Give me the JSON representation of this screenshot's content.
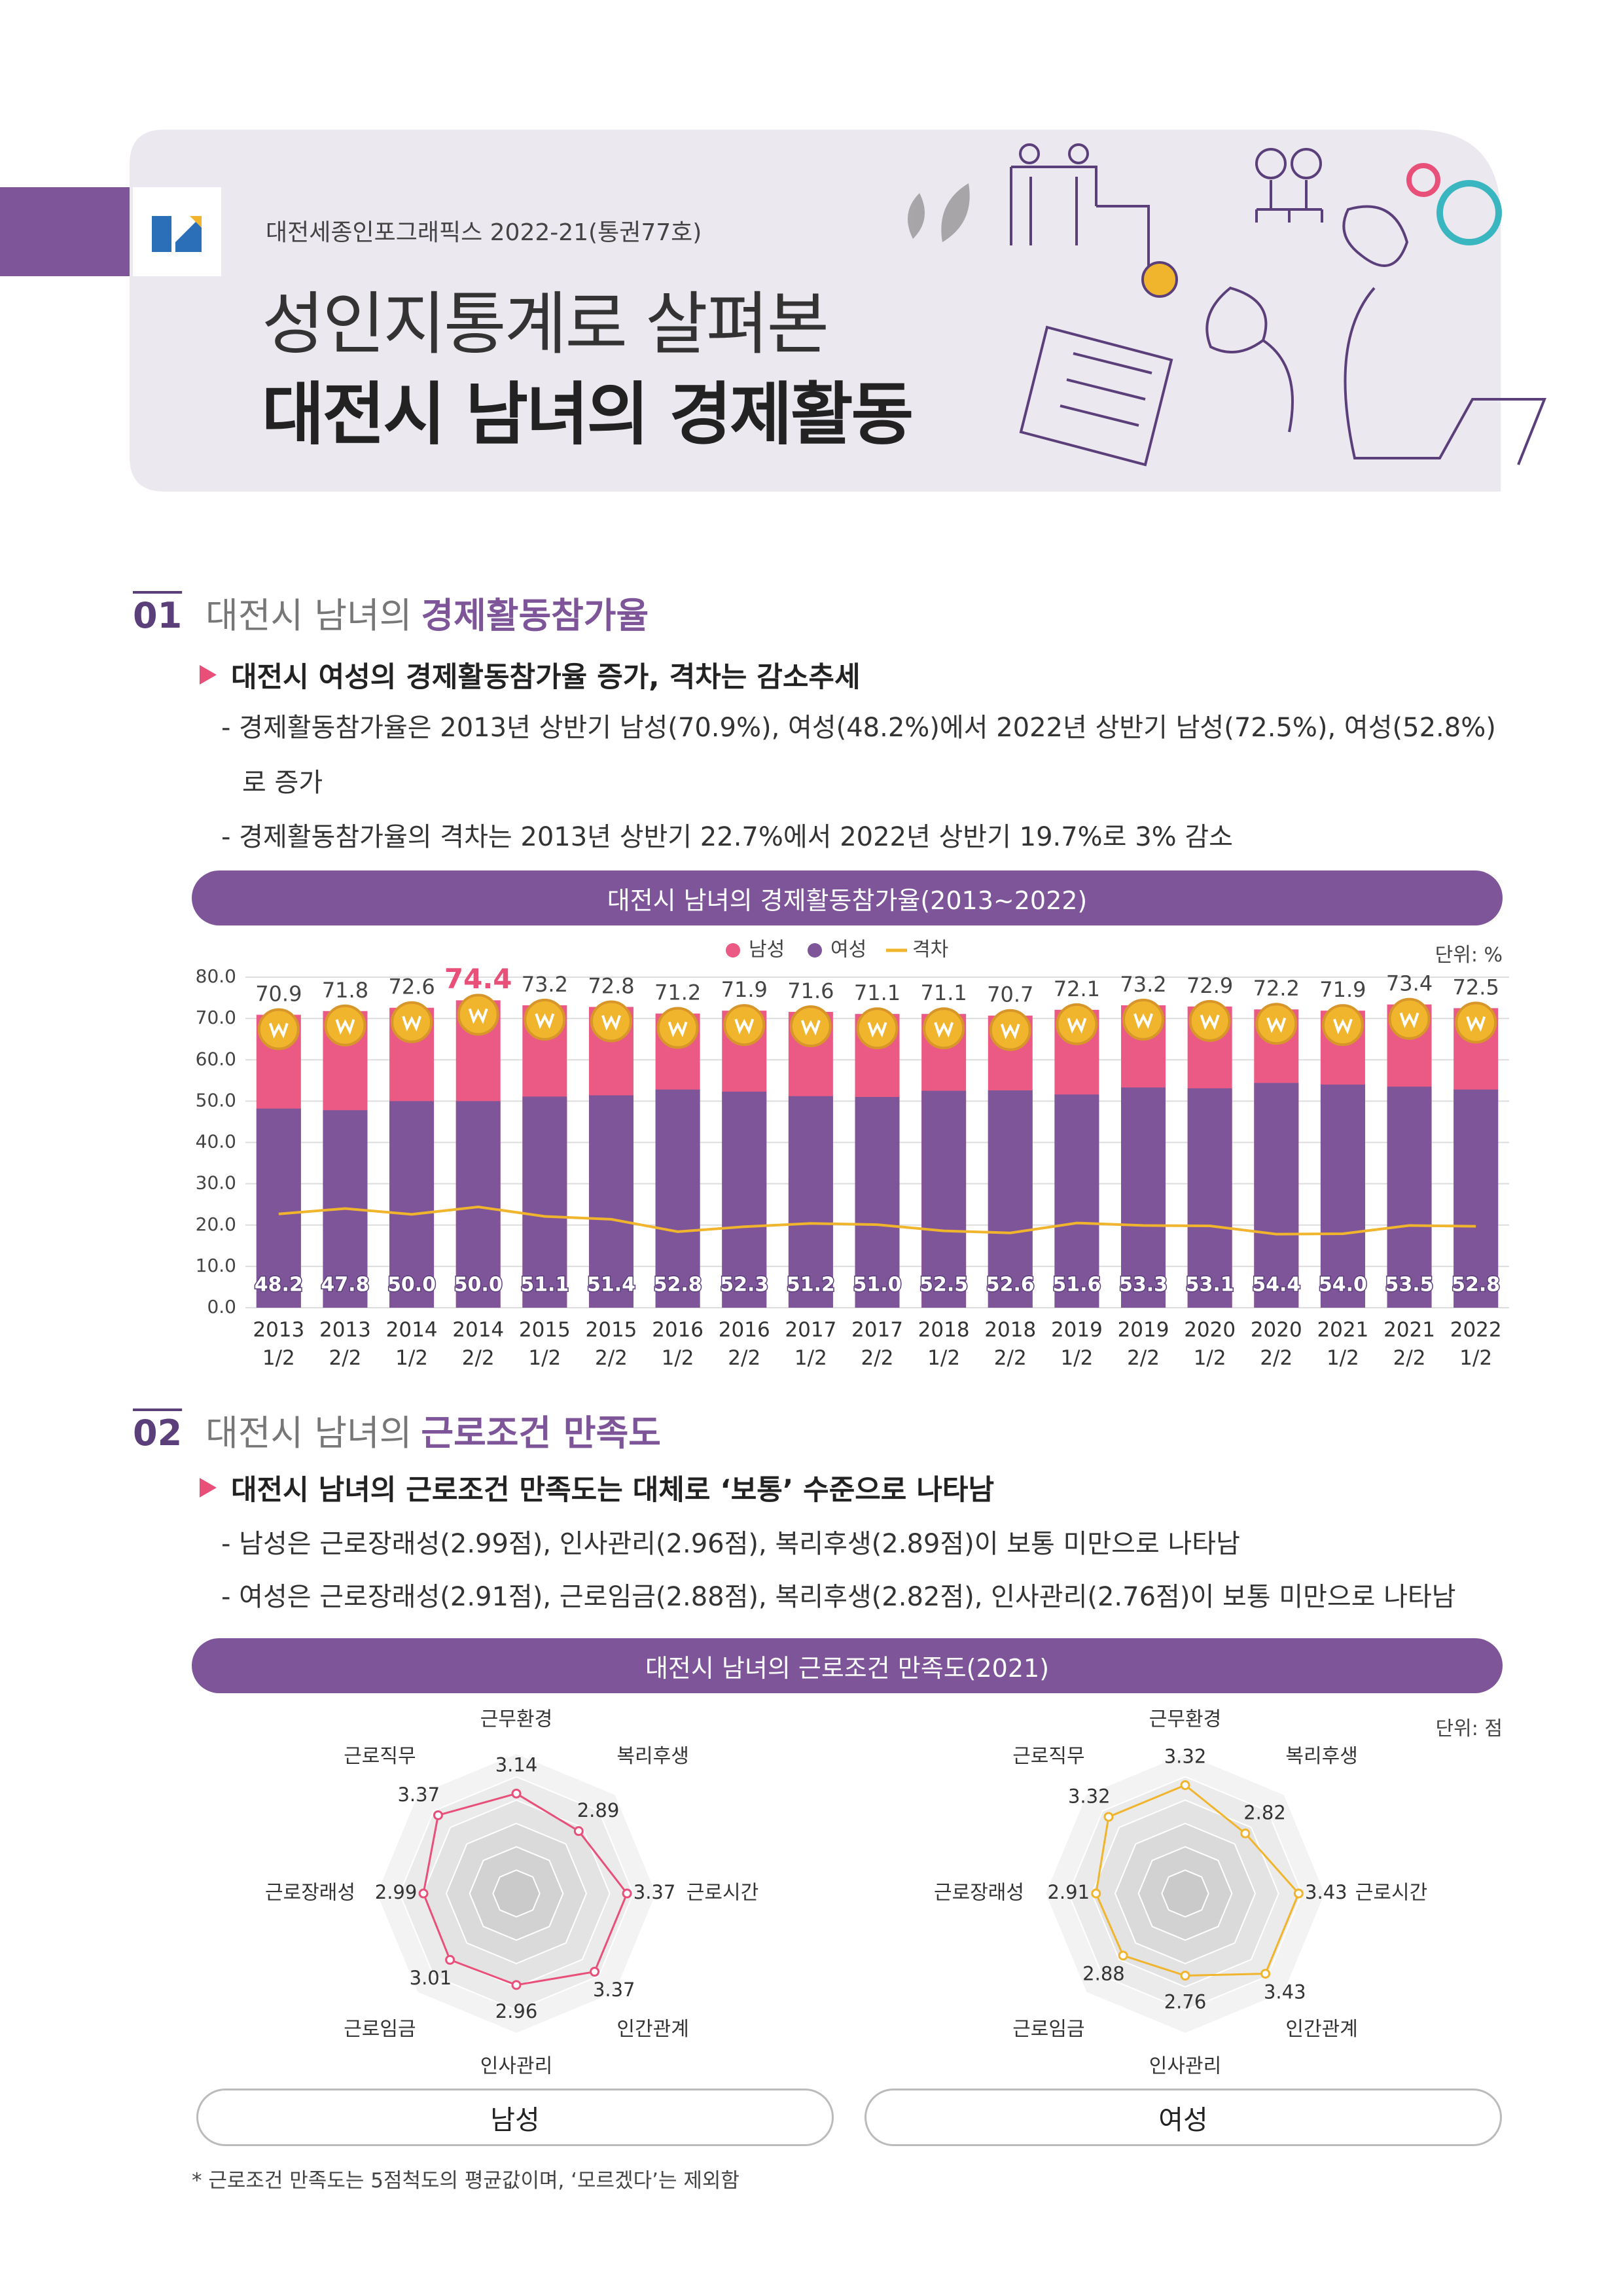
{
  "header": {
    "series": "대전세종인포그래픽스 2022-21(통권77호)",
    "title": [
      "성인지통계로 살펴본",
      "대전시 남녀의 경제활동"
    ]
  },
  "sections": [
    {
      "number": "01",
      "heading": "대전시 남녀의",
      "heading_bold": "경제활동참가율",
      "headline": "대전시 여성의 경제활동참가율 증가, 격차는 감소추세",
      "items": [
        "- 경제활동참가율은 2013년 상반기 남성(70.9%), 여성(48.2%)에서 2022년 상반기 남성(72.5%), 여성(52.8%)로 증가",
        "- 경제활동참가율의 격차는 2013년 상반기 22.7%에서 2022년 상반기 19.7%로 3% 감소"
      ]
    },
    {
      "number": "02",
      "heading": "대전시 남녀의",
      "heading_bold": "근로조건 만족도",
      "headline": "대전시 남녀의 근로조건 만족도는 대체로 ‘보통’ 수준으로 나타남",
      "items": [
        "- 남성은 근로장래성(2.99점), 인사관리(2.96점), 복리후생(2.89점)이 보통 미만으로 나타남",
        "- 여성은 근로장래성(2.91점), 근로임금(2.88점), 복리후생(2.82점), 인사관리(2.76점)이 보통 미만으로 나타남"
      ],
      "chart_title": "대전시 남녀의 근로조건 만족도(2021)",
      "unit": "단위: 점"
    }
  ],
  "chart_data": [
    {
      "type": "bar",
      "title": "대전시 남녀의 경제활동참가율(2013~2022)",
      "unit": "단위: %",
      "categories": [
        "2013\n1/2",
        "2013\n2/2",
        "2014\n1/2",
        "2014\n2/2",
        "2015\n1/2",
        "2015\n2/2",
        "2016\n1/2",
        "2016\n2/2",
        "2017\n1/2",
        "2017\n2/2",
        "2018\n1/2",
        "2018\n2/2",
        "2019\n1/2",
        "2019\n2/2",
        "2020\n1/2",
        "2020\n2/2",
        "2021\n1/2",
        "2021\n2/2",
        "2022\n1/2"
      ],
      "series": [
        {
          "name": "남성",
          "type": "bar",
          "color": "#ea5a84",
          "values": [
            70.9,
            71.8,
            72.6,
            74.4,
            73.2,
            72.8,
            71.2,
            71.9,
            71.6,
            71.1,
            71.1,
            70.7,
            72.1,
            73.2,
            72.9,
            72.2,
            71.9,
            73.4,
            72.5
          ]
        },
        {
          "name": "여성",
          "type": "bar",
          "color": "#7d5598",
          "values": [
            48.2,
            47.8,
            50.0,
            50.0,
            51.1,
            51.4,
            52.8,
            52.3,
            51.2,
            51.0,
            52.5,
            52.6,
            51.6,
            53.3,
            53.1,
            54.4,
            54.0,
            53.5,
            52.8
          ],
          "value_labels": [
            "48.2",
            "47.8",
            "50.0",
            "50.0",
            "51.1",
            "51.4",
            "52.8",
            "52.3",
            "51.2",
            "51.0",
            "52.5",
            "52.6",
            "51.6",
            "53.3",
            "53.1",
            "54.4",
            "54.0",
            "53.5",
            "52.8"
          ]
        },
        {
          "name": "격차",
          "type": "line",
          "color": "#f0b42d",
          "values": [
            22.7,
            24.0,
            22.6,
            24.4,
            22.1,
            21.4,
            18.4,
            19.6,
            20.4,
            20.1,
            18.6,
            18.1,
            20.5,
            19.9,
            19.8,
            17.8,
            17.9,
            19.9,
            19.7
          ]
        }
      ],
      "ylim": [
        0,
        80
      ],
      "yticks": [
        {
          "value": 0,
          "label": "0.0"
        },
        {
          "value": 10,
          "label": "10.0"
        },
        {
          "value": 20,
          "label": "20.0"
        },
        {
          "value": 30,
          "label": "30.0"
        },
        {
          "value": 40,
          "label": "40.0"
        },
        {
          "value": 50,
          "label": "50.0"
        },
        {
          "value": 60,
          "label": "60.0"
        },
        {
          "value": 70,
          "label": "70.0"
        },
        {
          "value": 80,
          "label": "80.0"
        }
      ],
      "grid": true,
      "legend": "top"
    },
    {
      "type": "radar",
      "name": "남성",
      "color": "#e8507a",
      "categories": [
        "근무환경",
        "복리후생",
        "근로시간",
        "인간관계",
        "인사관리",
        "근로임금",
        "근로장래성",
        "근로직무"
      ],
      "values": [
        3.14,
        2.89,
        3.37,
        3.37,
        2.96,
        3.01,
        2.99,
        3.37
      ],
      "rlim": [
        1,
        4
      ]
    },
    {
      "type": "radar",
      "name": "여성",
      "color": "#f0b42d",
      "categories": [
        "근무환경",
        "복리후생",
        "근로시간",
        "인간관계",
        "인사관리",
        "근로임금",
        "근로장래성",
        "근로직무"
      ],
      "values": [
        3.32,
        2.82,
        3.43,
        3.43,
        2.76,
        2.88,
        2.91,
        3.32
      ],
      "rlim": [
        1,
        4
      ]
    }
  ],
  "footnote": "* 근로조건 만족도는 5점척도의 평균값이며, ‘모르겠다’는 제외함"
}
